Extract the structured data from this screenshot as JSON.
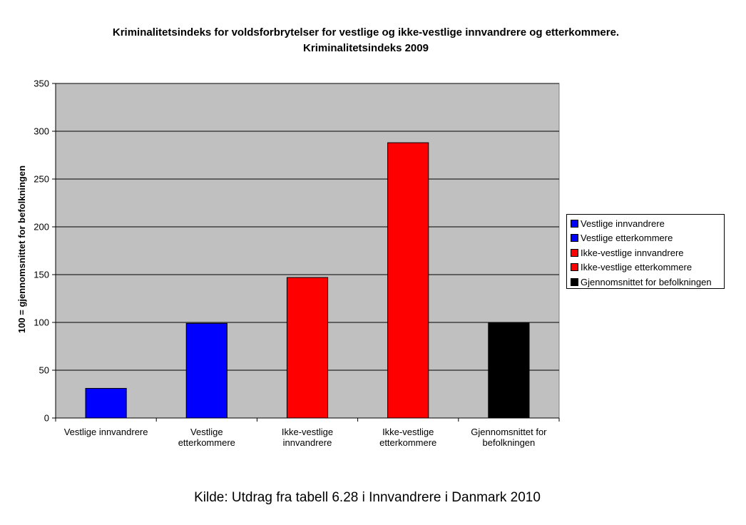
{
  "chart_data": {
    "type": "bar",
    "title": "Kriminalitetsindeks for voldsforbrytelser for vestlige og ikke-vestlige innvandrere og etterkommere.",
    "subtitle": "Kriminalitetsindeks 2009",
    "xlabel": "",
    "ylabel": "100 = gjennomsnittet for befolkningen",
    "ylim": [
      0,
      350
    ],
    "yticks": [
      0,
      50,
      100,
      150,
      200,
      250,
      300,
      350
    ],
    "grid": true,
    "legend_position": "right",
    "categories": [
      [
        "Vestlige innvandrere"
      ],
      [
        "Vestlige",
        "etterkommere"
      ],
      [
        "Ikke-vestlige",
        "innvandrere"
      ],
      [
        "Ikke-vestlige",
        "etterkommere"
      ],
      [
        "Gjennomsnittet for",
        "befolkningen"
      ]
    ],
    "values": [
      31,
      99,
      147,
      288,
      100
    ],
    "colors": [
      "#0000ff",
      "#0000ff",
      "#ff0000",
      "#ff0000",
      "#000000"
    ],
    "legend": [
      {
        "label": "Vestlige innvandrere",
        "color": "#0000ff"
      },
      {
        "label": "Vestlige etterkommere",
        "color": "#0000ff"
      },
      {
        "label": "Ikke-vestlige innvandrere",
        "color": "#ff0000"
      },
      {
        "label": "Ikke-vestlige etterkommere",
        "color": "#ff0000"
      },
      {
        "label": "Gjennomsnittet for befolkningen",
        "color": "#000000"
      }
    ],
    "plot_background": "#c0c0c0"
  },
  "source": "Kilde: Utdrag fra tabell 6.28 i Innvandrere i Danmark 2010"
}
